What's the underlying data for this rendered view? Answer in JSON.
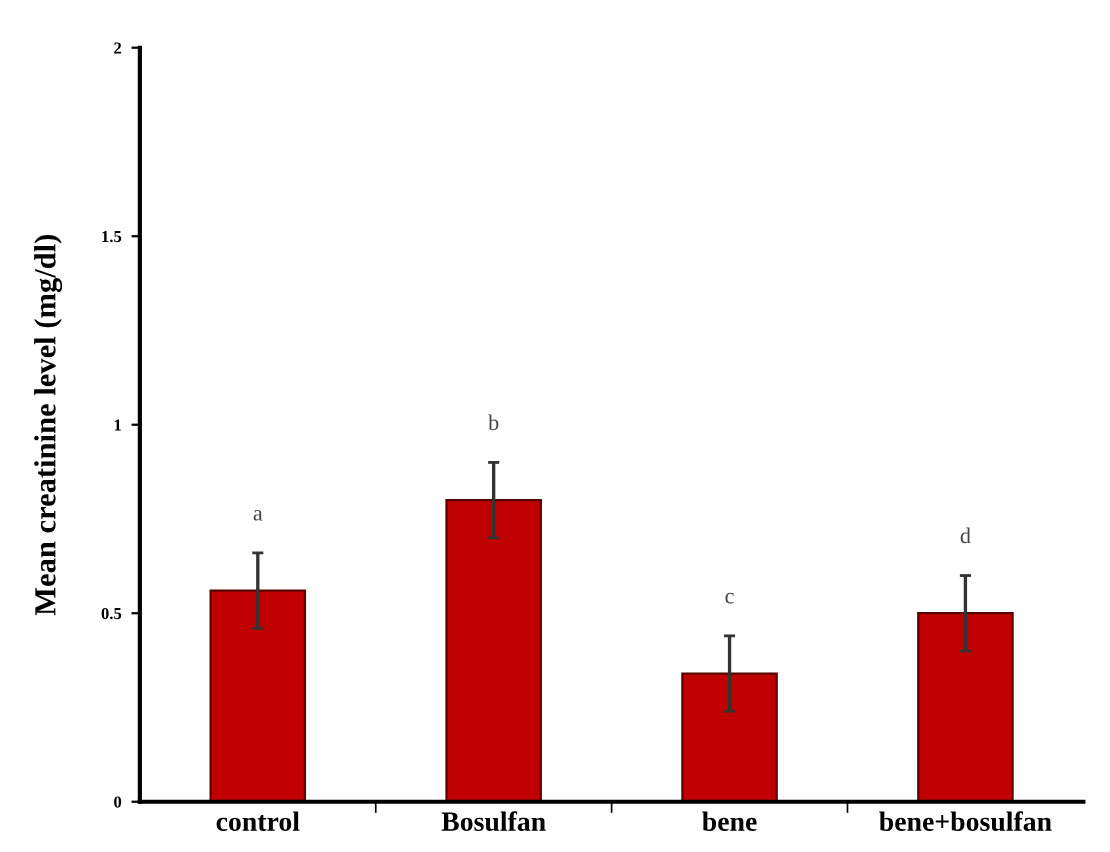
{
  "chart_data": {
    "type": "bar",
    "ylabel": "Mean creatinine level (mg/dl)",
    "categories": [
      "control",
      "Bosulfan",
      "bene",
      "bene+bosulfan"
    ],
    "values": [
      0.56,
      0.8,
      0.34,
      0.5
    ],
    "errors": [
      0.1,
      0.1,
      0.1,
      0.1
    ],
    "color": "#c00000",
    "ylim": [
      0,
      2
    ],
    "yticks": [
      0,
      0.5,
      1,
      1.5,
      2
    ],
    "grid": false,
    "annotations": [
      "a",
      "b",
      "c",
      "d"
    ]
  }
}
